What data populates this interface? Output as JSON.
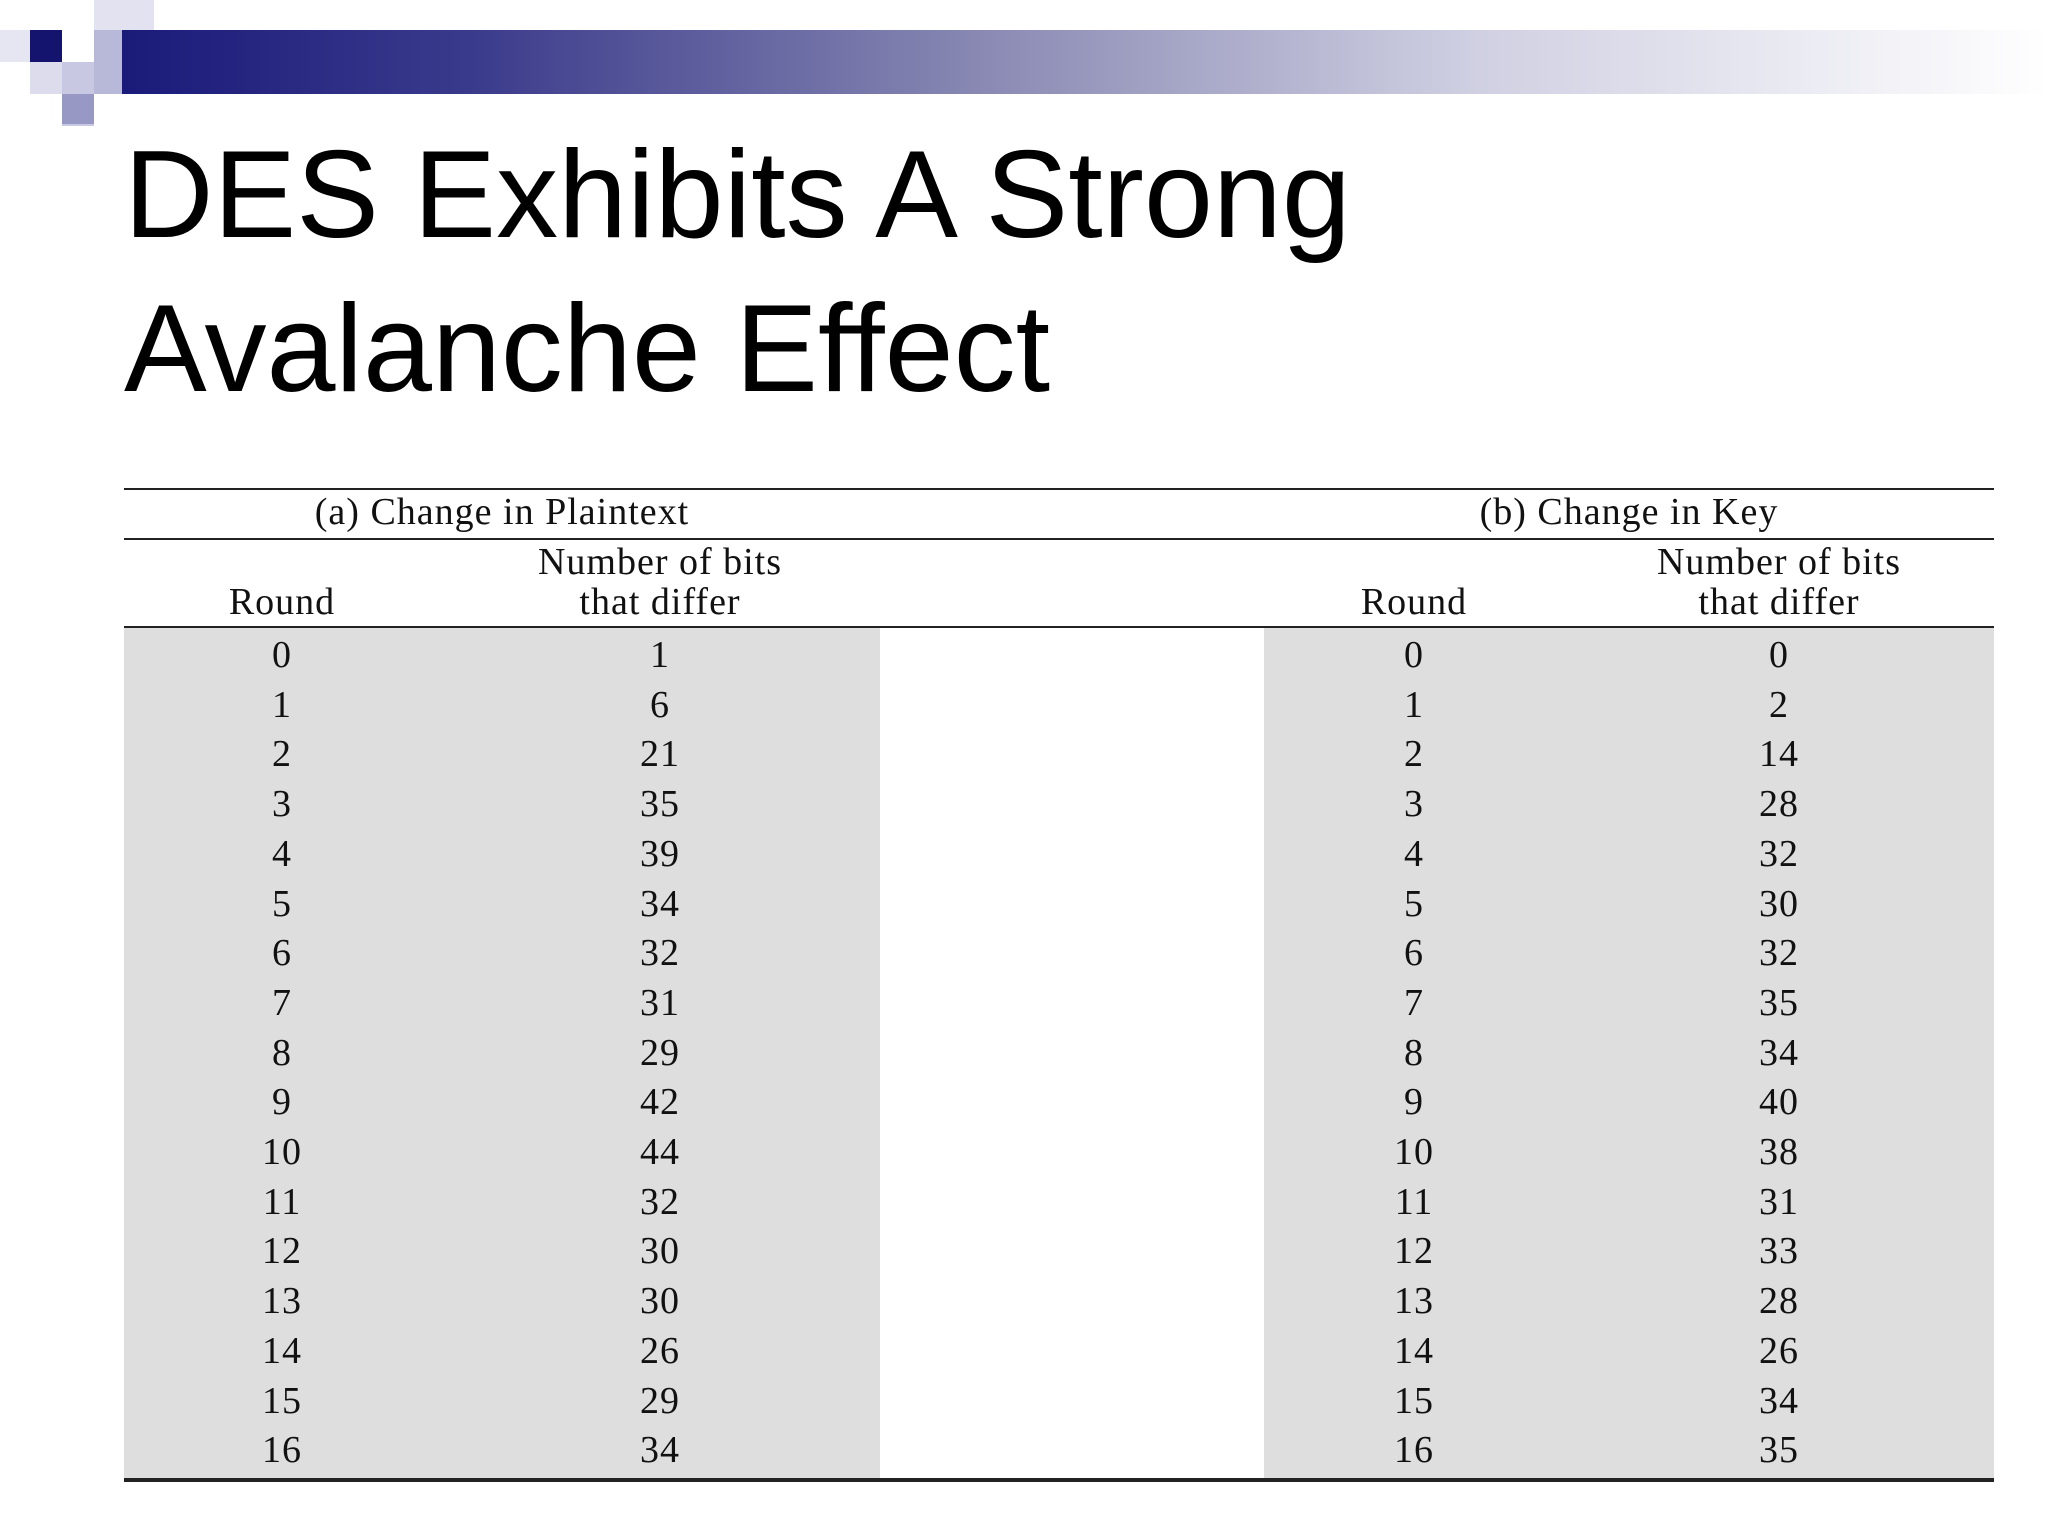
{
  "slide": {
    "title_line1": "DES Exhibits A Strong",
    "title_line2": "Avalanche Effect"
  },
  "table": {
    "group_a": "(a) Change in Plaintext",
    "group_b": "(b) Change in Key",
    "col_round": "Round",
    "col_bits_line1": "Number of bits",
    "col_bits_line2": "that differ",
    "plaintext_rows": [
      {
        "round": "0",
        "bits": "1"
      },
      {
        "round": "1",
        "bits": "6"
      },
      {
        "round": "2",
        "bits": "21"
      },
      {
        "round": "3",
        "bits": "35"
      },
      {
        "round": "4",
        "bits": "39"
      },
      {
        "round": "5",
        "bits": "34"
      },
      {
        "round": "6",
        "bits": "32"
      },
      {
        "round": "7",
        "bits": "31"
      },
      {
        "round": "8",
        "bits": "29"
      },
      {
        "round": "9",
        "bits": "42"
      },
      {
        "round": "10",
        "bits": "44"
      },
      {
        "round": "11",
        "bits": "32"
      },
      {
        "round": "12",
        "bits": "30"
      },
      {
        "round": "13",
        "bits": "30"
      },
      {
        "round": "14",
        "bits": "26"
      },
      {
        "round": "15",
        "bits": "29"
      },
      {
        "round": "16",
        "bits": "34"
      }
    ],
    "key_rows": [
      {
        "round": "0",
        "bits": "0"
      },
      {
        "round": "1",
        "bits": "2"
      },
      {
        "round": "2",
        "bits": "14"
      },
      {
        "round": "3",
        "bits": "28"
      },
      {
        "round": "4",
        "bits": "32"
      },
      {
        "round": "5",
        "bits": "30"
      },
      {
        "round": "6",
        "bits": "32"
      },
      {
        "round": "7",
        "bits": "35"
      },
      {
        "round": "8",
        "bits": "34"
      },
      {
        "round": "9",
        "bits": "40"
      },
      {
        "round": "10",
        "bits": "38"
      },
      {
        "round": "11",
        "bits": "31"
      },
      {
        "round": "12",
        "bits": "33"
      },
      {
        "round": "13",
        "bits": "28"
      },
      {
        "round": "14",
        "bits": "26"
      },
      {
        "round": "15",
        "bits": "34"
      },
      {
        "round": "16",
        "bits": "35"
      }
    ]
  },
  "colors": {
    "banner_dark": "#1a1a7a",
    "shade": "#dedede"
  }
}
